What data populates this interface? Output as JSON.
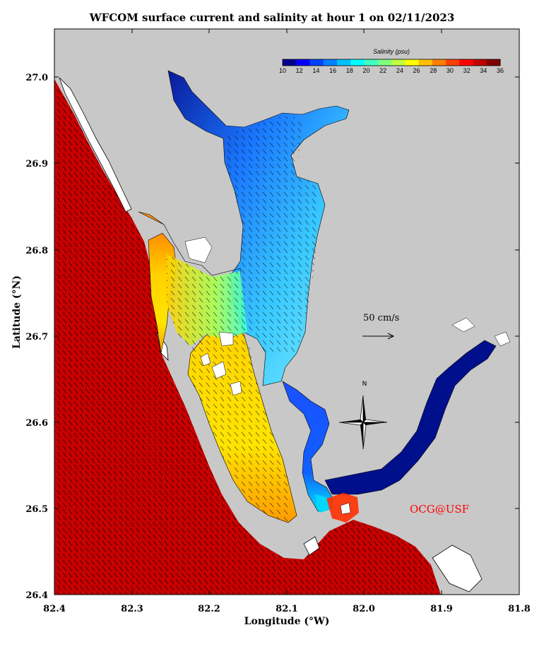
{
  "title": "WFCOM surface current and salinity at hour 1 on 02/11/2023",
  "x_axis": {
    "label": "Longitude (°W)",
    "ticks": [
      "82.4",
      "82.3",
      "82.2",
      "82.1",
      "82.0",
      "81.9",
      "81.8"
    ]
  },
  "y_axis": {
    "label": "Latitude (°N)",
    "ticks": [
      "27.0",
      "26.9",
      "26.8",
      "26.7",
      "26.6",
      "26.5",
      "26.4"
    ]
  },
  "colorbar": {
    "title": "Salinity (psu)",
    "ticks": [
      "10",
      "12",
      "14",
      "16",
      "18",
      "20",
      "22",
      "24",
      "26",
      "28",
      "30",
      "32",
      "34",
      "36"
    ],
    "colors": [
      "#00008f",
      "#0000ff",
      "#0040ff",
      "#0080ff",
      "#00c0ff",
      "#00ffff",
      "#40ffc0",
      "#80ff80",
      "#c0ff40",
      "#ffff00",
      "#ffc000",
      "#ff8000",
      "#ff4000",
      "#ff0000",
      "#c00000",
      "#800000"
    ]
  },
  "scale_vector": {
    "label": "50 cm/s"
  },
  "compass": {
    "north_label": "N"
  },
  "credit": "OCG@USF",
  "colors": {
    "land": "#c8c8c8",
    "gulf_water": "#cc0000",
    "islands": "#ffffff"
  }
}
